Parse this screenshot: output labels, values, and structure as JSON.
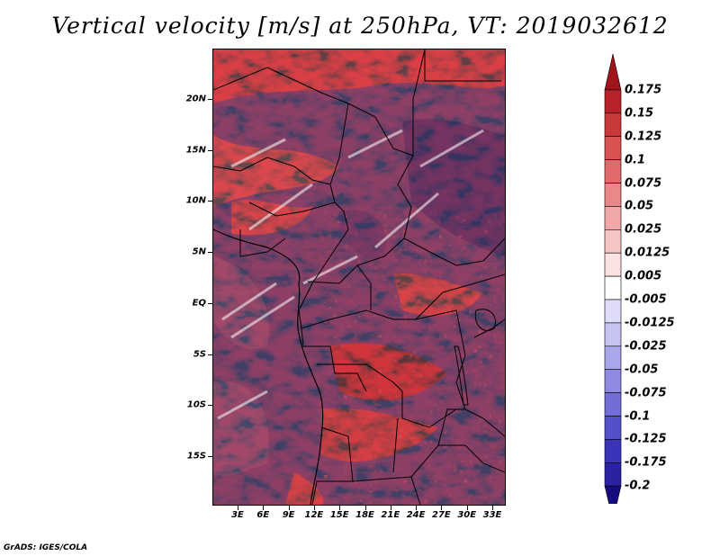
{
  "title": "Vertical velocity [m/s] at 250hPa, VT: 2019032612",
  "credit": "GrADS: IGES/COLA",
  "latitude_labels": [
    "20N",
    "15N",
    "10N",
    "5N",
    "EQ",
    "5S",
    "10S",
    "15S"
  ],
  "longitude_labels": [
    "3E",
    "6E",
    "9E",
    "12E",
    "15E",
    "18E",
    "21E",
    "24E",
    "27E",
    "30E",
    "33E"
  ],
  "colorbar": {
    "labels": [
      "0.175",
      "0.15",
      "0.125",
      "0.1",
      "0.075",
      "0.05",
      "0.025",
      "0.0125",
      "0.005",
      "-0.005",
      "-0.0125",
      "-0.025",
      "-0.05",
      "-0.075",
      "-0.1",
      "-0.125",
      "-0.175",
      "-0.2"
    ],
    "colors": [
      "#a0141e",
      "#b8222a",
      "#c83a3a",
      "#d85252",
      "#e06a6a",
      "#e88888",
      "#f0a8a8",
      "#f6c6c6",
      "#fbe2e2",
      "#ffffff",
      "#dedcf8",
      "#c6c2f2",
      "#aaa6ea",
      "#8e8ae0",
      "#726ed6",
      "#5450c8",
      "#3a34b8",
      "#2a22a0",
      "#160c80"
    ]
  },
  "map": {
    "variable": "vertical velocity",
    "level": "250hPa",
    "valid_time": "2019032612",
    "lon_range": [
      0,
      35
    ],
    "lat_range": [
      -20,
      25
    ]
  }
}
